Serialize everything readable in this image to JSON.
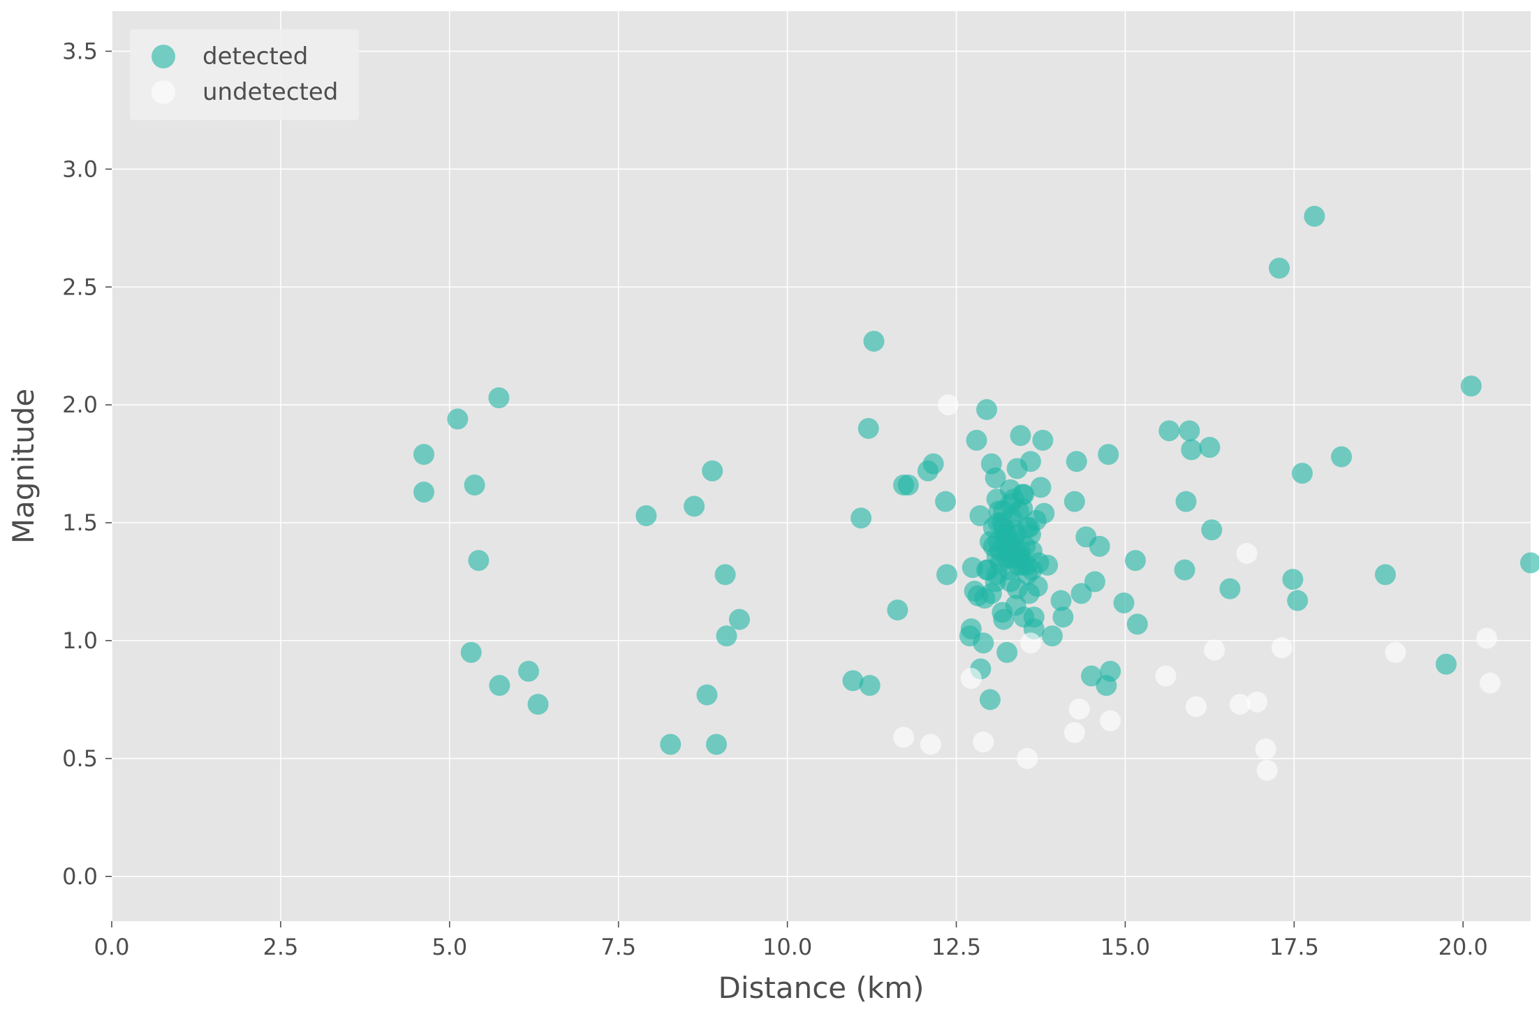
{
  "chart_data": {
    "type": "scatter",
    "title": "",
    "xlabel": "Distance (km)",
    "ylabel": "Magnitude",
    "xlim": [
      0,
      21
    ],
    "ylim": [
      -0.19,
      3.67
    ],
    "xticks": [
      0,
      2.5,
      5,
      7.5,
      10,
      12.5,
      15,
      17.5,
      20
    ],
    "xtick_labels": [
      "0.0",
      "2.5",
      "5.0",
      "7.5",
      "10.0",
      "12.5",
      "15.0",
      "17.5",
      "20.0"
    ],
    "yticks": [
      0,
      0.5,
      1,
      1.5,
      2,
      2.5,
      3,
      3.5
    ],
    "ytick_labels": [
      "0.0",
      "0.5",
      "1.0",
      "1.5",
      "2.0",
      "2.5",
      "3.0",
      "3.5"
    ],
    "grid": true,
    "legend_position": "top-left",
    "colors": {
      "plot_bg": "#e5e5e5",
      "grid": "#ffffff",
      "text": "#4d4d4d",
      "legend_bg": "#eeeeee"
    },
    "series": [
      {
        "name": "detected",
        "color": "#1fb5a5",
        "opacity": 0.6,
        "x": [
          4.62,
          4.62,
          5.12,
          5.37,
          5.43,
          5.32,
          5.73,
          5.74,
          6.17,
          6.31,
          7.91,
          8.27,
          8.62,
          8.81,
          8.89,
          8.95,
          9.08,
          9.1,
          9.29,
          10.97,
          11.09,
          11.2,
          11.22,
          11.28,
          11.63,
          11.72,
          11.79,
          12.08,
          12.16,
          12.34,
          12.36,
          12.7,
          12.72,
          12.74,
          12.77,
          12.8,
          12.82,
          12.86,
          12.9,
          12.95,
          12.97,
          13.0,
          13.02,
          13.05,
          13.08,
          13.1,
          13.12,
          13.13,
          13.15,
          13.18,
          13.2,
          13.22,
          13.25,
          13.28,
          13.3,
          13.3,
          13.32,
          13.35,
          13.38,
          13.4,
          13.42,
          13.45,
          13.48,
          13.5,
          13.52,
          13.55,
          13.58,
          13.6,
          13.62,
          13.65,
          13.68,
          13.7,
          13.72,
          13.75,
          13.78,
          13.8,
          13.85,
          13.92,
          14.05,
          14.08,
          14.25,
          14.28,
          14.35,
          14.42,
          14.5,
          14.55,
          14.62,
          14.72,
          14.75,
          14.78,
          14.98,
          15.15,
          15.18,
          15.65,
          15.88,
          15.9,
          15.95,
          15.98,
          16.25,
          16.28,
          16.55,
          17.28,
          17.48,
          17.55,
          17.62,
          17.8,
          18.2,
          18.85,
          19.75,
          20.12,
          21.0,
          13.12,
          13.25,
          13.3,
          13.38,
          13.45,
          13.1,
          13.2,
          13.35,
          13.55,
          13.62,
          13.0,
          13.08,
          13.42,
          13.48,
          12.92,
          12.85,
          13.25,
          13.55,
          13.6,
          13.3,
          13.15,
          13.4,
          13.5,
          13.2,
          13.28,
          13.35,
          13.45,
          13.65,
          13.1,
          13.02,
          13.38,
          13.32,
          12.95,
          13.05,
          13.18,
          13.22,
          13.48,
          13.58,
          13.42
        ],
        "y": [
          1.79,
          1.63,
          1.94,
          1.66,
          1.34,
          0.95,
          2.03,
          0.81,
          0.87,
          0.73,
          1.53,
          0.56,
          1.57,
          0.77,
          1.72,
          0.56,
          1.28,
          1.02,
          1.09,
          0.83,
          1.52,
          1.9,
          0.81,
          2.27,
          1.13,
          1.66,
          1.66,
          1.72,
          1.75,
          1.59,
          1.28,
          1.02,
          1.05,
          1.31,
          1.21,
          1.85,
          1.19,
          0.88,
          0.99,
          1.98,
          1.3,
          0.75,
          1.75,
          1.48,
          1.69,
          1.36,
          1.42,
          1.55,
          1.33,
          1.12,
          1.09,
          1.45,
          0.95,
          1.38,
          1.64,
          1.25,
          1.52,
          1.47,
          1.15,
          1.73,
          1.32,
          1.87,
          1.56,
          1.1,
          1.4,
          1.28,
          1.2,
          1.76,
          1.38,
          1.05,
          1.51,
          1.23,
          1.33,
          1.65,
          1.85,
          1.54,
          1.32,
          1.02,
          1.17,
          1.1,
          1.59,
          1.76,
          1.2,
          1.44,
          0.85,
          1.25,
          1.4,
          0.81,
          1.79,
          0.87,
          1.16,
          1.34,
          1.07,
          1.89,
          1.3,
          1.59,
          1.89,
          1.81,
          1.82,
          1.47,
          1.22,
          2.58,
          1.26,
          1.17,
          1.71,
          2.8,
          1.78,
          1.28,
          0.9,
          2.08,
          1.33,
          1.5,
          1.45,
          1.42,
          1.38,
          1.35,
          1.28,
          1.55,
          1.6,
          1.48,
          1.3,
          1.42,
          1.25,
          1.55,
          1.62,
          1.18,
          1.53,
          1.35,
          1.32,
          1.45,
          1.58,
          1.38,
          1.22,
          1.62,
          1.48,
          1.3,
          1.42,
          1.38,
          1.1,
          1.6,
          1.2,
          1.45,
          1.35,
          1.3,
          1.4,
          1.5,
          1.43,
          1.32,
          1.48,
          1.36
        ]
      },
      {
        "name": "undetected",
        "color": "#ffffff",
        "opacity": 0.6,
        "x": [
          11.72,
          12.12,
          12.38,
          12.72,
          12.9,
          13.55,
          13.6,
          14.25,
          14.32,
          14.78,
          15.6,
          16.05,
          16.32,
          16.7,
          16.8,
          16.95,
          17.08,
          17.1,
          17.32,
          19.0,
          20.35,
          20.4
        ],
        "y": [
          0.59,
          0.56,
          2.0,
          0.84,
          0.57,
          0.5,
          0.99,
          0.61,
          0.71,
          0.66,
          0.85,
          0.72,
          0.96,
          0.73,
          1.37,
          0.74,
          0.54,
          0.45,
          0.97,
          0.95,
          1.01,
          0.82
        ]
      }
    ]
  }
}
